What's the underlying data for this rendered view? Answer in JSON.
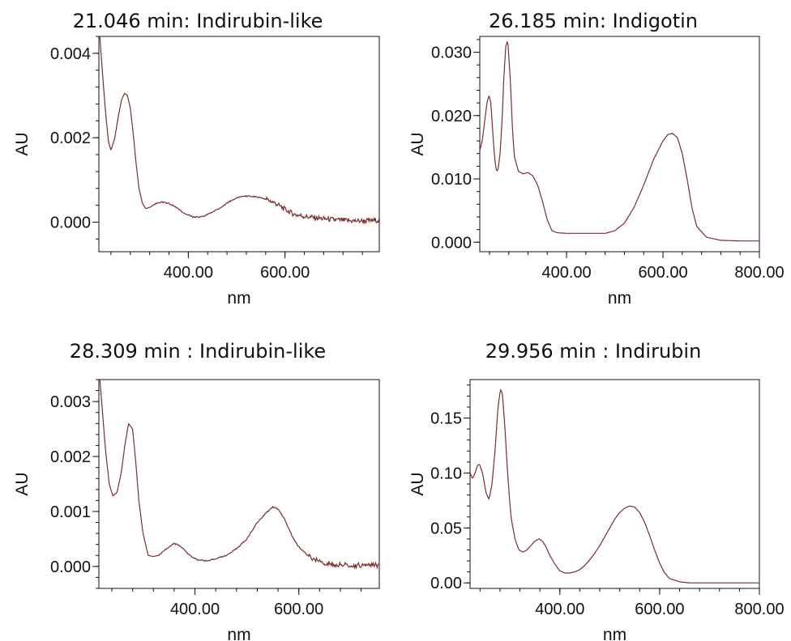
{
  "style": {
    "line_color": "#7a2e2e",
    "axis_color": "#111111",
    "background": "#ffffff"
  },
  "chart_data": [
    {
      "type": "line",
      "title": "21.046 min: Indirubin-like",
      "xlabel": "nm",
      "ylabel": "AU",
      "xlim": [
        215,
        795
      ],
      "ylim": [
        -0.0007,
        0.0044
      ],
      "xticks": [
        400,
        600
      ],
      "xtick_labels": [
        "400.00",
        "600.00"
      ],
      "yticks": [
        0,
        0.002,
        0.004
      ],
      "ytick_labels": [
        "0.000",
        "0.002",
        "0.004"
      ],
      "grid": false,
      "noise_from": 560,
      "series": [
        {
          "x": [
            217,
            222,
            228,
            235,
            240,
            248,
            255,
            262,
            268,
            274,
            280,
            286,
            292,
            298,
            305,
            312,
            320,
            330,
            345,
            360,
            375,
            390,
            410,
            425,
            440,
            460,
            480,
            500,
            520,
            540,
            560,
            580,
            600,
            620,
            650,
            680,
            710,
            740,
            770,
            795
          ],
          "y": [
            0.0044,
            0.0036,
            0.0027,
            0.0019,
            0.0017,
            0.002,
            0.0025,
            0.0029,
            0.00305,
            0.003,
            0.0027,
            0.0021,
            0.0014,
            0.0008,
            0.00045,
            0.00032,
            0.00035,
            0.00042,
            0.00048,
            0.00045,
            0.00035,
            0.00022,
            0.00012,
            0.00012,
            0.00018,
            0.0003,
            0.00045,
            0.00058,
            0.00062,
            0.0006,
            0.00055,
            0.00045,
            0.0003,
            0.00018,
            0.00012,
            8e-05,
            5e-05,
            3e-05,
            3e-05,
            5e-05
          ]
        }
      ]
    },
    {
      "type": "line",
      "title": "26.185 min: Indigotin",
      "xlabel": "nm",
      "ylabel": "AU",
      "xlim": [
        220,
        800
      ],
      "ylim": [
        -0.0015,
        0.0325
      ],
      "xticks": [
        400,
        600,
        800
      ],
      "xtick_labels": [
        "400.00",
        "600.00",
        "800.00"
      ],
      "yticks": [
        0,
        0.01,
        0.02,
        0.03
      ],
      "ytick_labels": [
        "0.000",
        "0.010",
        "0.020",
        "0.030"
      ],
      "grid": false,
      "noise_from": 9999,
      "series": [
        {
          "x": [
            220,
            225,
            230,
            235,
            239,
            243,
            248,
            252,
            255,
            258,
            262,
            266,
            270,
            274,
            278,
            283,
            288,
            292,
            300,
            310,
            320,
            330,
            340,
            350,
            360,
            370,
            380,
            400,
            420,
            440,
            460,
            480,
            500,
            520,
            540,
            560,
            580,
            600,
            610,
            620,
            630,
            640,
            650,
            660,
            670,
            690,
            720,
            760,
            800
          ],
          "y": [
            0.0145,
            0.016,
            0.019,
            0.022,
            0.0232,
            0.022,
            0.016,
            0.0125,
            0.0112,
            0.0115,
            0.014,
            0.019,
            0.026,
            0.031,
            0.0318,
            0.026,
            0.0175,
            0.0135,
            0.0112,
            0.0108,
            0.011,
            0.0105,
            0.009,
            0.0065,
            0.0035,
            0.0018,
            0.0015,
            0.0014,
            0.0014,
            0.0014,
            0.0014,
            0.0014,
            0.0018,
            0.003,
            0.0055,
            0.009,
            0.013,
            0.016,
            0.017,
            0.0172,
            0.0165,
            0.014,
            0.01,
            0.0055,
            0.0025,
            0.0008,
            0.0003,
            0.0002,
            0.0002
          ]
        }
      ]
    },
    {
      "type": "line",
      "title": "28.309 min : Indirubin-like",
      "xlabel": "nm",
      "ylabel": "AU",
      "xlim": [
        215,
        755
      ],
      "ylim": [
        -0.0004,
        0.0034
      ],
      "xticks": [
        400,
        600
      ],
      "xtick_labels": [
        "400.00",
        "600.00"
      ],
      "yticks": [
        0,
        0.001,
        0.002,
        0.003
      ],
      "ytick_labels": [
        "0.000",
        "0.001",
        "0.002",
        "0.003"
      ],
      "grid": false,
      "noise_from": 620,
      "series": [
        {
          "x": [
            217,
            222,
            228,
            235,
            242,
            250,
            258,
            265,
            272,
            280,
            286,
            292,
            300,
            310,
            320,
            330,
            345,
            360,
            375,
            390,
            405,
            420,
            440,
            460,
            480,
            500,
            520,
            540,
            550,
            560,
            570,
            580,
            590,
            600,
            620,
            650,
            680,
            710,
            740,
            755
          ],
          "y": [
            0.0034,
            0.0028,
            0.0021,
            0.0015,
            0.00128,
            0.00135,
            0.0017,
            0.0022,
            0.0026,
            0.0025,
            0.0019,
            0.0012,
            0.0006,
            0.0002,
            0.00018,
            0.0002,
            0.00032,
            0.00042,
            0.00035,
            0.0002,
            0.00012,
            0.0001,
            0.00014,
            0.0002,
            0.00032,
            0.0005,
            0.0008,
            0.001,
            0.00108,
            0.00105,
            0.0009,
            0.0007,
            0.0005,
            0.00035,
            0.00018,
            6e-05,
            3e-05,
            2e-05,
            2e-05,
            2e-05
          ]
        }
      ]
    },
    {
      "type": "line",
      "title": "29.956 min : Indirubin",
      "xlabel": "nm",
      "ylabel": "AU",
      "xlim": [
        220,
        800
      ],
      "ylim": [
        -0.005,
        0.185
      ],
      "xticks": [
        400,
        600,
        800
      ],
      "xtick_labels": [
        "400.00",
        "600.00",
        "800.00"
      ],
      "yticks": [
        0,
        0.05,
        0.1,
        0.15
      ],
      "ytick_labels": [
        "0.00",
        "0.05",
        "0.10",
        "0.15"
      ],
      "grid": false,
      "noise_from": 9999,
      "series": [
        {
          "x": [
            220,
            225,
            230,
            235,
            239,
            245,
            252,
            258,
            264,
            270,
            276,
            281,
            285,
            290,
            296,
            302,
            310,
            318,
            326,
            334,
            342,
            350,
            358,
            365,
            372,
            380,
            390,
            400,
            410,
            420,
            430,
            440,
            450,
            460,
            470,
            480,
            490,
            500,
            510,
            520,
            530,
            540,
            550,
            560,
            570,
            580,
            590,
            600,
            610,
            620,
            640,
            660,
            700,
            750,
            800
          ],
          "y": [
            0.1,
            0.095,
            0.1,
            0.107,
            0.108,
            0.1,
            0.082,
            0.076,
            0.09,
            0.12,
            0.16,
            0.176,
            0.172,
            0.14,
            0.095,
            0.06,
            0.04,
            0.03,
            0.028,
            0.03,
            0.034,
            0.038,
            0.04,
            0.038,
            0.033,
            0.025,
            0.017,
            0.011,
            0.009,
            0.009,
            0.01,
            0.012,
            0.016,
            0.021,
            0.027,
            0.034,
            0.042,
            0.05,
            0.058,
            0.064,
            0.068,
            0.07,
            0.069,
            0.064,
            0.055,
            0.043,
            0.03,
            0.018,
            0.009,
            0.004,
            0.001,
            0.0,
            0.0,
            0.0,
            0.0
          ]
        }
      ]
    }
  ]
}
